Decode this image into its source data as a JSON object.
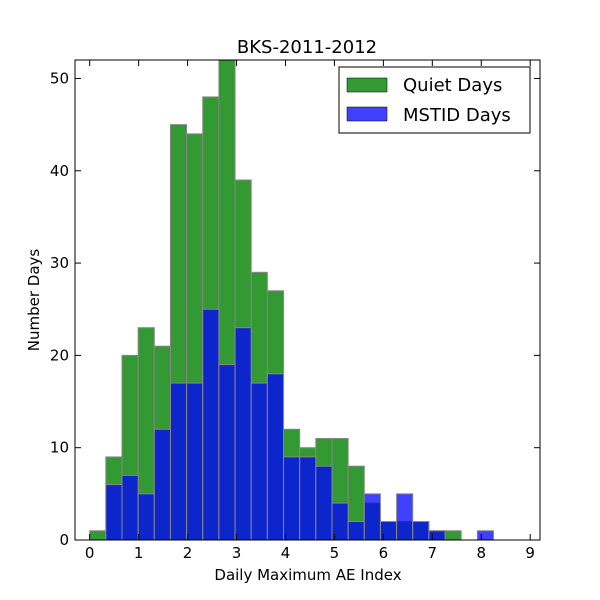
{
  "chart_data": {
    "type": "bar",
    "title": "BKS-2011-2012",
    "xlabel": "Daily Maximum AE Index",
    "ylabel": "Number Days",
    "xlim": [
      -0.3,
      9.2
    ],
    "ylim": [
      0,
      52
    ],
    "xticks": [
      0,
      1,
      2,
      3,
      4,
      5,
      6,
      7,
      8,
      9
    ],
    "yticks": [
      0,
      10,
      20,
      30,
      40,
      50
    ],
    "bin_width": 0.33,
    "legend_position": "top-right",
    "series": [
      {
        "name": "Quiet Days",
        "color": "#008000",
        "opacity": 0.8,
        "bins": [
          {
            "x": 0.0,
            "value": 1
          },
          {
            "x": 0.33,
            "value": 9
          },
          {
            "x": 0.66,
            "value": 20
          },
          {
            "x": 0.99,
            "value": 23
          },
          {
            "x": 1.32,
            "value": 21
          },
          {
            "x": 1.65,
            "value": 45
          },
          {
            "x": 1.98,
            "value": 44
          },
          {
            "x": 2.31,
            "value": 48
          },
          {
            "x": 2.64,
            "value": 52
          },
          {
            "x": 2.97,
            "value": 39
          },
          {
            "x": 3.3,
            "value": 29
          },
          {
            "x": 3.63,
            "value": 27
          },
          {
            "x": 3.96,
            "value": 12
          },
          {
            "x": 4.29,
            "value": 10
          },
          {
            "x": 4.62,
            "value": 11
          },
          {
            "x": 4.95,
            "value": 11
          },
          {
            "x": 5.28,
            "value": 8
          },
          {
            "x": 5.61,
            "value": 4
          },
          {
            "x": 5.94,
            "value": 2
          },
          {
            "x": 6.27,
            "value": 2
          },
          {
            "x": 6.6,
            "value": 2
          },
          {
            "x": 6.93,
            "value": 1
          },
          {
            "x": 7.26,
            "value": 1
          }
        ]
      },
      {
        "name": "MSTID Days",
        "color": "#0000ff",
        "opacity": 0.75,
        "bins": [
          {
            "x": 0.33,
            "value": 6
          },
          {
            "x": 0.66,
            "value": 7
          },
          {
            "x": 0.99,
            "value": 5
          },
          {
            "x": 1.32,
            "value": 12
          },
          {
            "x": 1.65,
            "value": 17
          },
          {
            "x": 1.98,
            "value": 17
          },
          {
            "x": 2.31,
            "value": 25
          },
          {
            "x": 2.64,
            "value": 19
          },
          {
            "x": 2.97,
            "value": 23
          },
          {
            "x": 3.3,
            "value": 17
          },
          {
            "x": 3.63,
            "value": 18
          },
          {
            "x": 3.96,
            "value": 9
          },
          {
            "x": 4.29,
            "value": 9
          },
          {
            "x": 4.62,
            "value": 8
          },
          {
            "x": 4.95,
            "value": 4
          },
          {
            "x": 5.28,
            "value": 2
          },
          {
            "x": 5.61,
            "value": 5
          },
          {
            "x": 5.94,
            "value": 2
          },
          {
            "x": 6.27,
            "value": 5
          },
          {
            "x": 6.6,
            "value": 2
          },
          {
            "x": 6.93,
            "value": 1
          },
          {
            "x": 7.92,
            "value": 1
          }
        ]
      }
    ]
  }
}
